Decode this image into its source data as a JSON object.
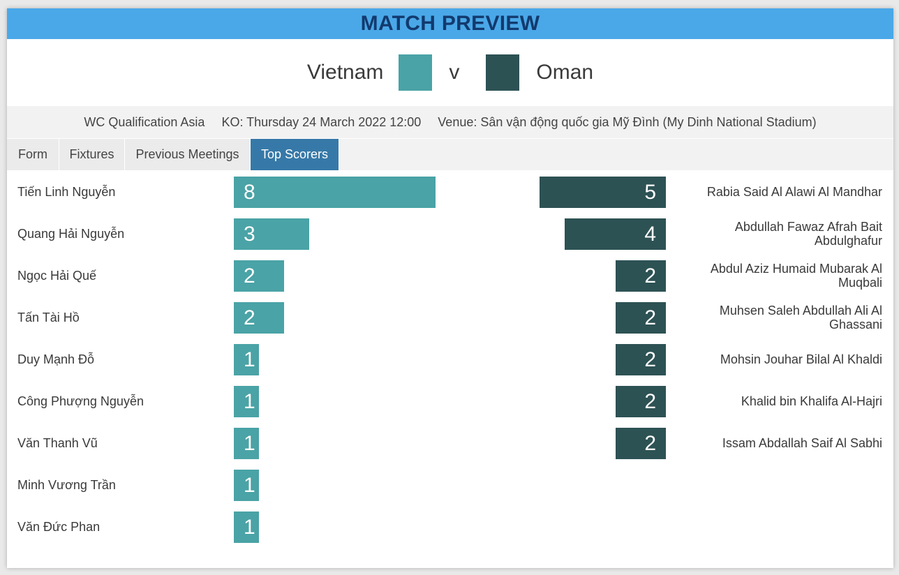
{
  "header": {
    "title": "MATCH PREVIEW"
  },
  "teams": {
    "home": {
      "name": "Vietnam",
      "color": "#4aa3a6"
    },
    "separator": "v",
    "away": {
      "name": "Oman",
      "color": "#2d5254"
    }
  },
  "meta": {
    "competition": "WC Qualification Asia",
    "kickoff": "KO: Thursday 24 March 2022 12:00",
    "venue": "Venue: Sân vận động quốc gia Mỹ Đình (My Dinh National Stadium)"
  },
  "tabs": [
    {
      "label": "Form",
      "active": false
    },
    {
      "label": "Fixtures",
      "active": false
    },
    {
      "label": "Previous Meetings",
      "active": false
    },
    {
      "label": "Top Scorers",
      "active": true
    }
  ],
  "home_scorers": [
    {
      "name": "Tiến Linh Nguyễn",
      "goals": 8
    },
    {
      "name": "Quang Hải Nguyễn",
      "goals": 3
    },
    {
      "name": "Ngọc Hải Quế",
      "goals": 2
    },
    {
      "name": "Tấn Tài Hồ",
      "goals": 2
    },
    {
      "name": "Duy Mạnh Đỗ",
      "goals": 1
    },
    {
      "name": "Công Phượng Nguyễn",
      "goals": 1
    },
    {
      "name": "Văn Thanh Vũ",
      "goals": 1
    },
    {
      "name": "Minh Vương Trần",
      "goals": 1
    },
    {
      "name": "Văn Đức Phan",
      "goals": 1
    }
  ],
  "away_scorers": [
    {
      "name": "Rabia Said Al Alawi Al Mandhar",
      "goals": 5
    },
    {
      "name": "Abdullah Fawaz Afrah Bait Abdulghafur",
      "goals": 4
    },
    {
      "name": "Abdul Aziz Humaid Mubarak Al Muqbali",
      "goals": 2
    },
    {
      "name": "Muhsen Saleh Abdullah Ali Al Ghassani",
      "goals": 2
    },
    {
      "name": "Mohsin Jouhar Bilal Al Khaldi",
      "goals": 2
    },
    {
      "name": "Khalid bin Khalifa Al-Hajri",
      "goals": 2
    },
    {
      "name": "Issam Abdallah Saif Al Sabhi",
      "goals": 2
    }
  ]
}
